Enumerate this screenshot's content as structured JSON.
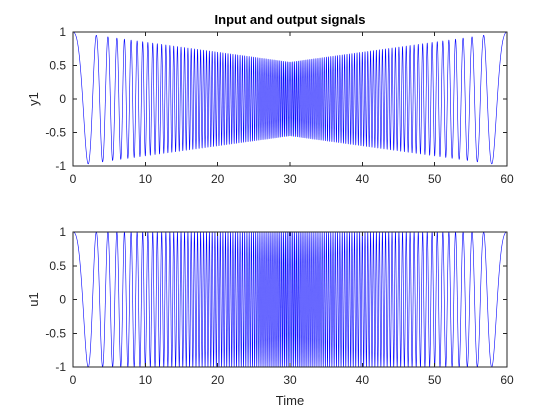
{
  "chart_data": [
    {
      "type": "line",
      "title": "Input and output signals",
      "xlabel": "",
      "ylabel": "y1",
      "xlim": [
        0,
        60
      ],
      "ylim": [
        -1,
        1
      ],
      "xticks": [
        0,
        10,
        20,
        30,
        40,
        50,
        60
      ],
      "yticks": [
        -1,
        -0.5,
        0,
        0.5,
        1
      ],
      "xtick_labels": [
        "0",
        "10",
        "20",
        "30",
        "40",
        "50",
        "60"
      ],
      "ytick_labels": [
        "-1",
        "-0.5",
        "0",
        "0.5",
        "1"
      ],
      "grid": false,
      "series_color": "#0000ff",
      "signal_model": "swept sine (chirp), frequency rising linearly to t=30 then falling symmetrically; amplitude envelope",
      "envelope": {
        "t": [
          0,
          30,
          60
        ],
        "amplitude": [
          1.0,
          0.55,
          1.0
        ]
      },
      "frequency_hz": {
        "t": [
          0,
          30,
          60
        ],
        "f": [
          0.1,
          4.0,
          0.1
        ]
      }
    },
    {
      "type": "line",
      "title": "",
      "xlabel": "Time",
      "ylabel": "u1",
      "xlim": [
        0,
        60
      ],
      "ylim": [
        -1,
        1
      ],
      "xticks": [
        0,
        10,
        20,
        30,
        40,
        50,
        60
      ],
      "yticks": [
        -1,
        -0.5,
        0,
        0.5,
        1
      ],
      "xtick_labels": [
        "0",
        "10",
        "20",
        "30",
        "40",
        "50",
        "60"
      ],
      "ytick_labels": [
        "-1",
        "-0.5",
        "0",
        "0.5",
        "1"
      ],
      "grid": false,
      "series_color": "#0000ff",
      "signal_model": "swept sine (chirp), constant unit amplitude, frequency rising to t=30 then falling",
      "envelope": {
        "t": [
          0,
          30,
          60
        ],
        "amplitude": [
          1.0,
          1.0,
          1.0
        ]
      },
      "frequency_hz": {
        "t": [
          0,
          30,
          60
        ],
        "f": [
          0.1,
          4.0,
          0.1
        ]
      }
    }
  ]
}
